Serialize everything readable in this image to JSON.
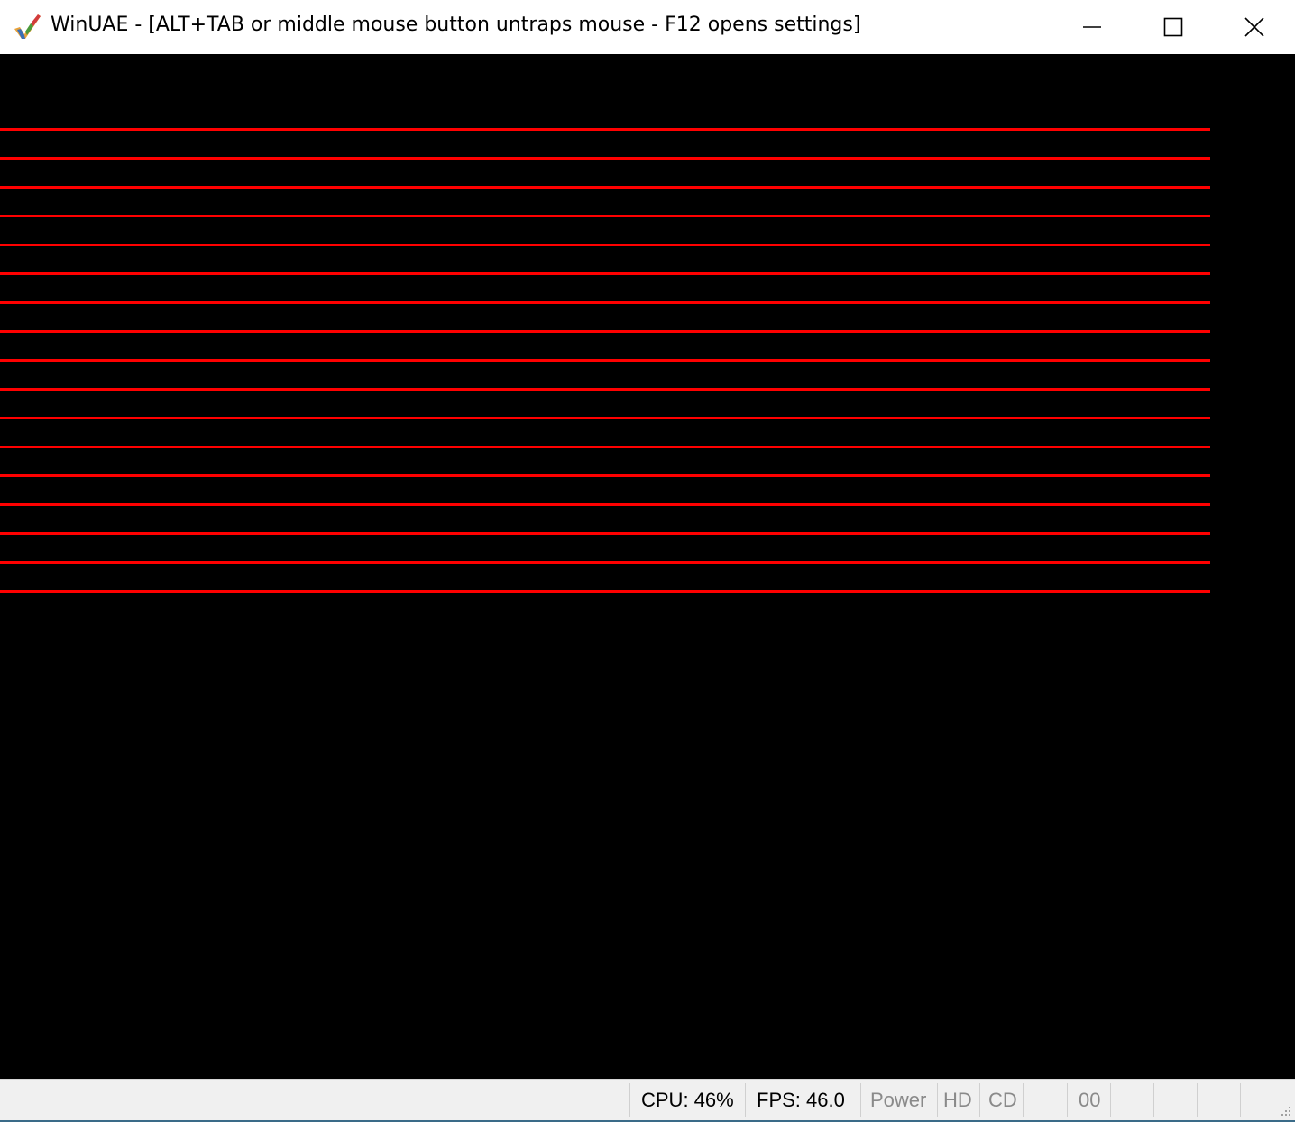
{
  "window": {
    "title": "WinUAE - [ALT+TAB or middle mouse button untraps mouse - F12 opens settings]",
    "icon": "winuae-checkmark-icon",
    "controls": {
      "minimize": "minimize-icon",
      "maximize": "maximize-icon",
      "close": "close-icon"
    }
  },
  "screen": {
    "background": "#000000",
    "line_color": "#ff0000",
    "line_count": 17
  },
  "statusbar": {
    "cpu": "CPU: 46%",
    "fps": "FPS: 46.0",
    "power": "Power",
    "hd": "HD",
    "cd": "CD",
    "drive_track": "00"
  }
}
